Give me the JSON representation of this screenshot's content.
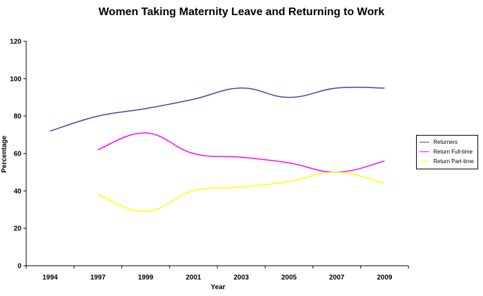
{
  "chart_data": {
    "type": "line",
    "title": "Women Taking Maternity Leave and Returning to Work",
    "xlabel": "Year",
    "ylabel": "Percentage",
    "categories": [
      "1994",
      "1997",
      "1999",
      "2001",
      "2003",
      "2005",
      "2007",
      "2009"
    ],
    "ylim": [
      0,
      120
    ],
    "yticks": [
      0,
      20,
      40,
      60,
      80,
      100,
      120
    ],
    "grid": false,
    "legend_position": "right",
    "series": [
      {
        "name": "Returners",
        "color": "#4B3F9E",
        "values": [
          72,
          80,
          84,
          89,
          95,
          90,
          95,
          95
        ]
      },
      {
        "name": "Return Full-time",
        "color": "#FF00FF",
        "values": [
          null,
          62,
          71,
          60,
          58,
          55,
          50,
          56
        ]
      },
      {
        "name": "Return Part-time",
        "color": "#FFFF00",
        "values": [
          null,
          38,
          29,
          40,
          42,
          45,
          50,
          44
        ]
      }
    ]
  }
}
